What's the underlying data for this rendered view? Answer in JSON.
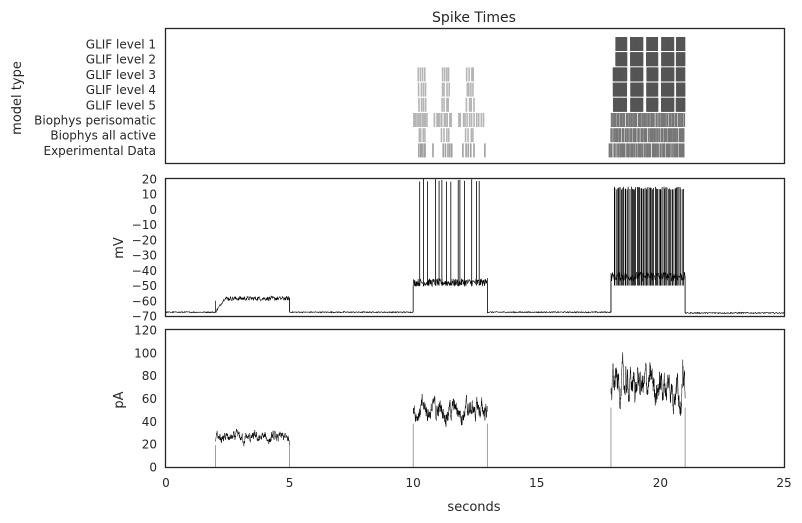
{
  "figure": {
    "xlabel": "seconds",
    "xlim": [
      0,
      25
    ],
    "xticks": [
      0,
      5,
      10,
      15,
      20,
      25
    ]
  },
  "chart_data": [
    {
      "type": "raster",
      "title": "Spike Times",
      "ylabel": "model type",
      "rows": [
        "GLIF level 1",
        "GLIF level 2",
        "GLIF level 3",
        "GLIF level 4",
        "GLIF level 5",
        "Biophys perisomatic",
        "Biophys all active",
        "Experimental Data"
      ],
      "spike_windows": [
        [
          {
            "color": "#555555",
            "bursts": [
              [
                18.2,
                18.65,
                16
              ],
              [
                18.8,
                19.3,
                18
              ],
              [
                19.45,
                19.9,
                16
              ],
              [
                20.05,
                20.55,
                18
              ],
              [
                20.65,
                21.0,
                12
              ]
            ]
          }
        ],
        [
          {
            "color": "#555555",
            "bursts": [
              [
                18.2,
                18.65,
                16
              ],
              [
                18.8,
                19.3,
                18
              ],
              [
                19.45,
                19.9,
                16
              ],
              [
                20.05,
                20.55,
                18
              ],
              [
                20.65,
                21.0,
                12
              ]
            ]
          }
        ],
        [
          {
            "color": "#b5b5b5",
            "bursts": [
              [
                10.2,
                10.55,
                4
              ],
              [
                11.15,
                11.5,
                4
              ],
              [
                12.15,
                12.5,
                4
              ]
            ]
          },
          {
            "color": "#555555",
            "bursts": [
              [
                18.1,
                18.65,
                16
              ],
              [
                18.8,
                19.3,
                18
              ],
              [
                19.45,
                19.9,
                16
              ],
              [
                20.05,
                20.55,
                18
              ],
              [
                20.65,
                21.0,
                12
              ]
            ]
          }
        ],
        [
          {
            "color": "#b5b5b5",
            "bursts": [
              [
                10.2,
                10.55,
                4
              ],
              [
                11.15,
                11.5,
                4
              ],
              [
                12.15,
                12.5,
                4
              ]
            ]
          },
          {
            "color": "#555555",
            "bursts": [
              [
                18.1,
                18.65,
                16
              ],
              [
                18.8,
                19.3,
                18
              ],
              [
                19.45,
                19.9,
                16
              ],
              [
                20.05,
                20.55,
                18
              ],
              [
                20.65,
                21.0,
                12
              ]
            ]
          }
        ],
        [
          {
            "color": "#b5b5b5",
            "bursts": [
              [
                10.2,
                10.55,
                4
              ],
              [
                11.15,
                11.5,
                4
              ],
              [
                12.15,
                12.5,
                4
              ]
            ]
          },
          {
            "color": "#555555",
            "bursts": [
              [
                18.1,
                18.65,
                16
              ],
              [
                18.8,
                19.3,
                18
              ],
              [
                19.45,
                19.9,
                16
              ],
              [
                20.05,
                20.55,
                18
              ],
              [
                20.65,
                21.0,
                12
              ]
            ]
          }
        ],
        [
          {
            "color": "#b5b5b5",
            "bursts": [
              [
                10.0,
                10.6,
                10
              ],
              [
                10.85,
                11.6,
                10
              ],
              [
                11.8,
                12.9,
                12
              ]
            ]
          },
          {
            "color": "#777777",
            "bursts": [
              [
                18.0,
                21.0,
                50
              ]
            ]
          }
        ],
        [
          {
            "color": "#b5b5b5",
            "bursts": [
              [
                10.2,
                10.55,
                4
              ],
              [
                11.1,
                11.55,
                4
              ],
              [
                12.1,
                12.5,
                4
              ]
            ]
          },
          {
            "color": "#777777",
            "bursts": [
              [
                18.0,
                21.0,
                48
              ]
            ]
          }
        ],
        [
          {
            "color": "#a0a0a0",
            "bursts": [
              [
                10.2,
                10.55,
                5
              ],
              [
                10.8,
                10.85,
                1
              ],
              [
                11.2,
                11.6,
                5
              ],
              [
                12.0,
                12.5,
                5
              ],
              [
                12.9,
                12.95,
                1
              ]
            ]
          },
          {
            "color": "#777777",
            "bursts": [
              [
                17.9,
                21.0,
                48
              ]
            ]
          }
        ]
      ]
    },
    {
      "type": "line",
      "ylabel": "mV",
      "ylim": [
        -70,
        20
      ],
      "yticks": [
        20,
        10,
        0,
        -10,
        -20,
        -30,
        -40,
        -50,
        -60,
        -70
      ],
      "segments": [
        {
          "x0": 0,
          "x1": 2,
          "baseline": -67.5,
          "noise": 0.4
        },
        {
          "x0": 2,
          "x1": 2.4,
          "baseline_from": -67.5,
          "baseline_to": -58,
          "noise": 0.8
        },
        {
          "x0": 2.4,
          "x1": 5,
          "baseline": -58.5,
          "noise": 1.4
        },
        {
          "x0": 5,
          "x1": 10,
          "baseline": -67.5,
          "noise": 0.4
        },
        {
          "x0": 10,
          "x1": 13,
          "baseline": -48,
          "noise": 2.6
        },
        {
          "x0": 13,
          "x1": 18,
          "baseline": -67.5,
          "noise": 0.4
        },
        {
          "x0": 18,
          "x1": 21,
          "baseline": -44,
          "noise": 3.0
        },
        {
          "x0": 21,
          "x1": 25,
          "baseline": -68,
          "noise": 0.4
        }
      ],
      "spikes": [
        {
          "x0": 10.2,
          "x1": 12.8,
          "count": 14,
          "peak": 20
        },
        {
          "x0": 18.1,
          "x1": 20.95,
          "count": 58,
          "peak": 15
        }
      ]
    },
    {
      "type": "line",
      "ylabel": "pA",
      "ylim": [
        0,
        120
      ],
      "yticks": [
        120,
        100,
        80,
        60,
        40,
        20,
        0
      ],
      "steps": [
        {
          "x0": 2,
          "x1": 5,
          "mean": 25,
          "amp": 6
        },
        {
          "x0": 10,
          "x1": 13,
          "mean": 50,
          "amp": 12
        },
        {
          "x0": 18,
          "x1": 21,
          "mean": 72,
          "amp": 20
        }
      ]
    }
  ]
}
